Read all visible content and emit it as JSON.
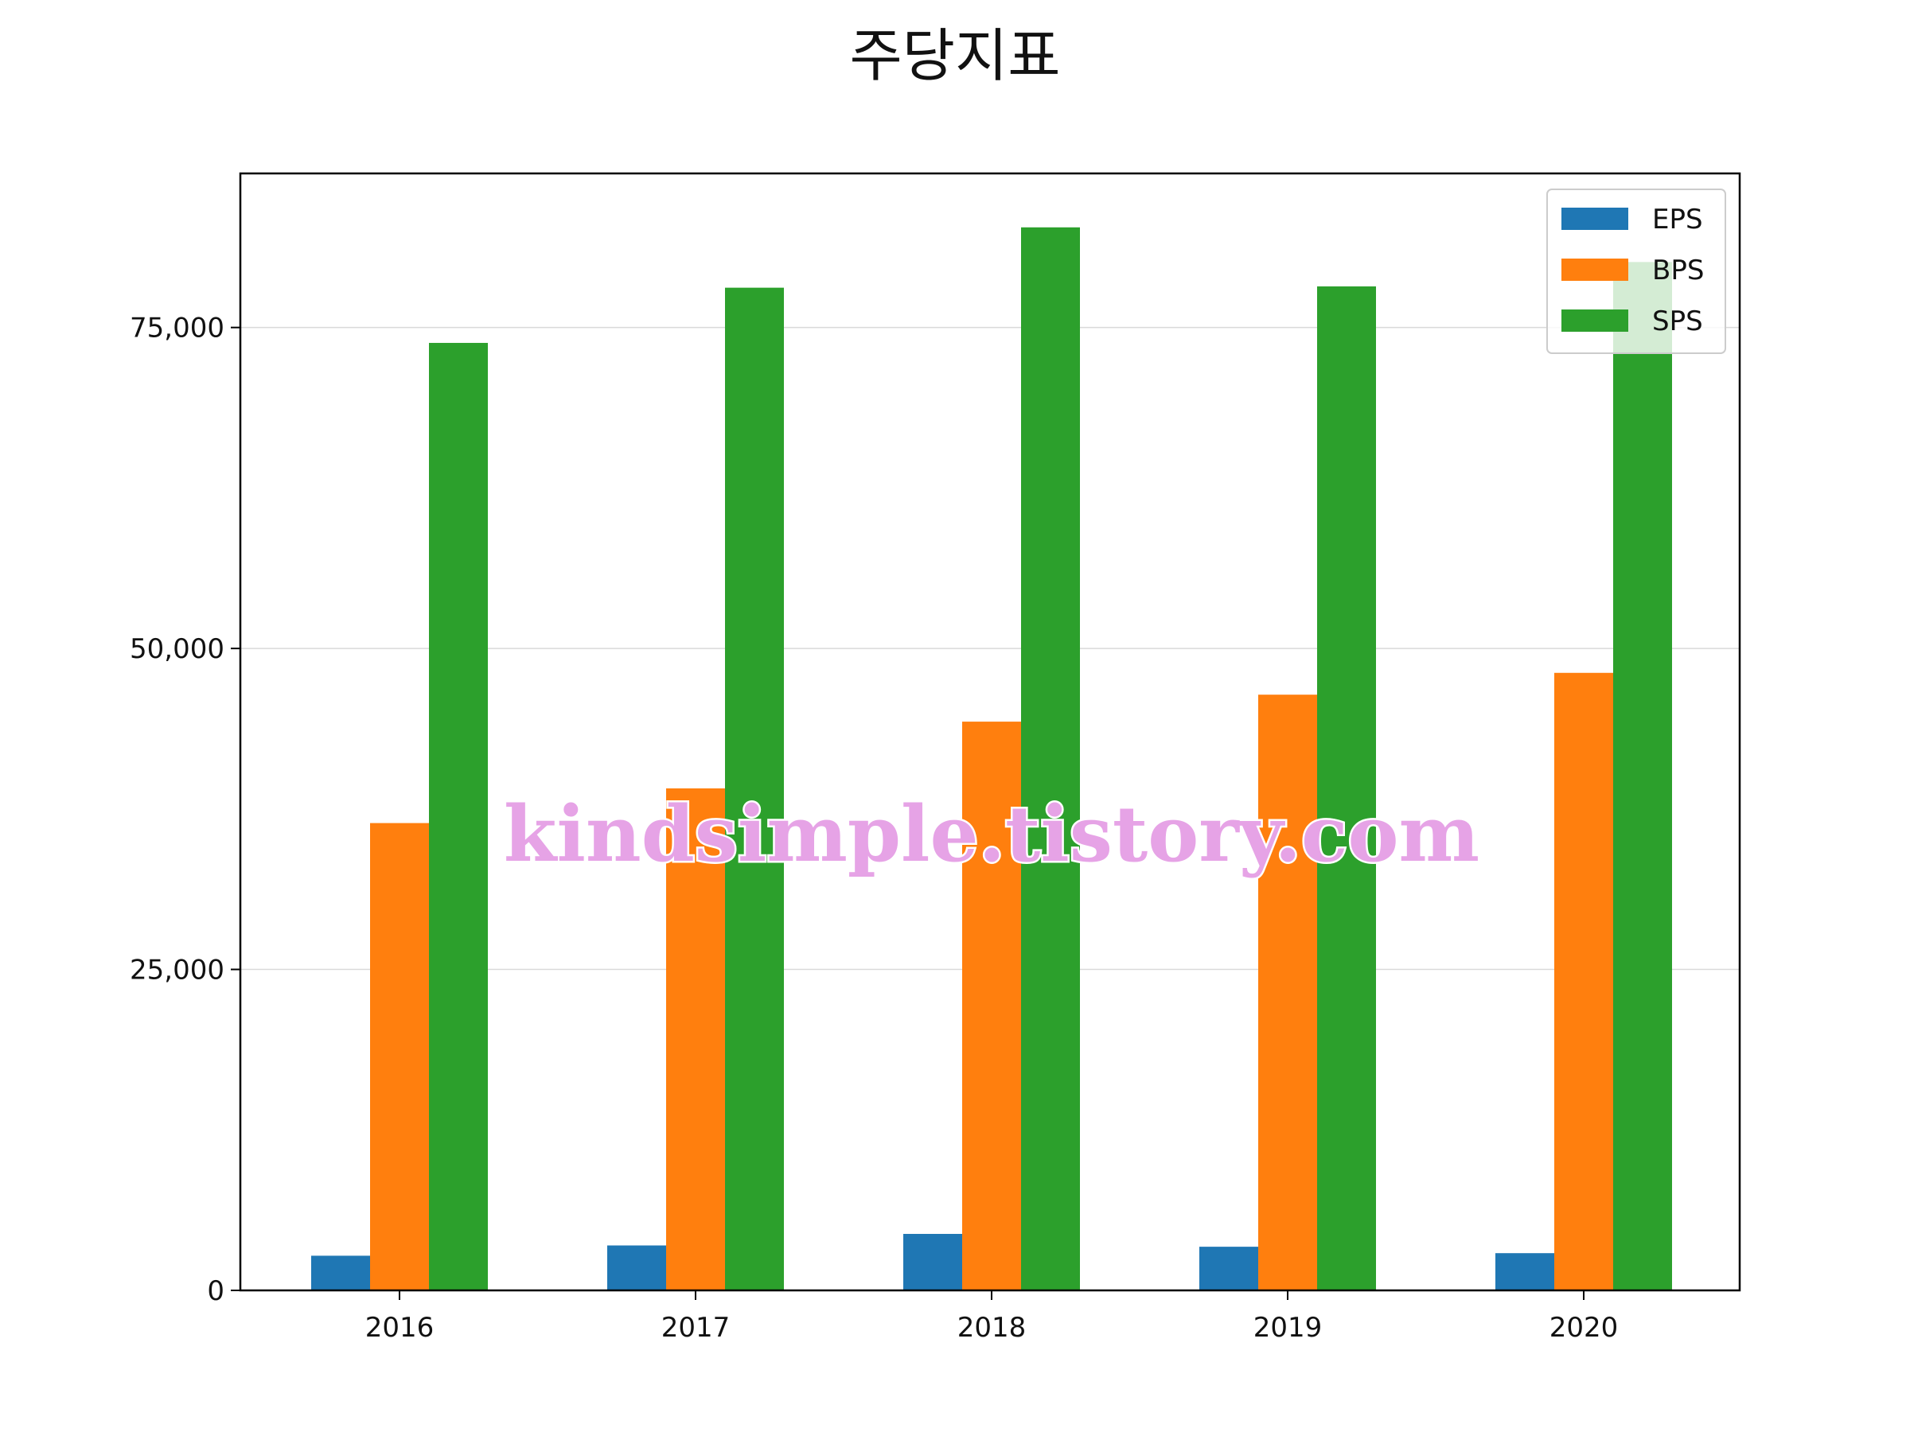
{
  "chart_data": {
    "type": "bar",
    "title": "주당지표",
    "xlabel": "",
    "ylabel": "",
    "categories": [
      "2016",
      "2017",
      "2018",
      "2019",
      "2020"
    ],
    "series": [
      {
        "name": "EPS",
        "color": "#1f77b4",
        "values": [
          2700,
          3500,
          4400,
          3400,
          2900
        ]
      },
      {
        "name": "BPS",
        "color": "#ff7f0e",
        "values": [
          36400,
          39100,
          44300,
          46400,
          48100
        ]
      },
      {
        "name": "SPS",
        "color": "#2ca02c",
        "values": [
          73800,
          78100,
          82800,
          78200,
          80100
        ]
      }
    ],
    "ylim": [
      0,
      87000
    ],
    "yticks": [
      0,
      25000,
      50000,
      75000
    ],
    "ytick_labels": [
      "0",
      "25,000",
      "50,000",
      "75,000"
    ],
    "grid": "horizontal",
    "legend_position": "top-right"
  },
  "watermark": "kindsimple.tistory.com"
}
